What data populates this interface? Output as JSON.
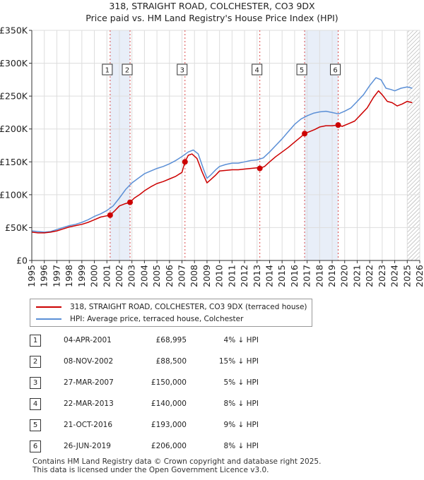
{
  "title_line1": "318, STRAIGHT ROAD, COLCHESTER, CO3 9DX",
  "title_line2": "Price paid vs. HM Land Registry's House Price Index (HPI)",
  "colors": {
    "property": "#cc0000",
    "hpi": "#5b8fd6",
    "shade": "#e8eef8",
    "vline": "#cc0000",
    "grid": "#dddddd",
    "hatch": "#999999"
  },
  "chart_data": {
    "type": "line",
    "title": "Price paid vs. HM Land Registry's House Price Index (HPI)",
    "xlabel": "",
    "ylabel": "",
    "xlim": [
      1995,
      2026
    ],
    "ylim": [
      0,
      350000
    ],
    "yticks": [
      0,
      50000,
      100000,
      150000,
      200000,
      250000,
      300000,
      350000
    ],
    "ytick_labels": [
      "£0",
      "£50K",
      "£100K",
      "£150K",
      "£200K",
      "£250K",
      "£300K",
      "£350K"
    ],
    "xticks": [
      1995,
      1996,
      1997,
      1998,
      1999,
      2000,
      2001,
      2002,
      2003,
      2004,
      2005,
      2006,
      2007,
      2008,
      2009,
      2010,
      2011,
      2012,
      2013,
      2014,
      2015,
      2016,
      2017,
      2018,
      2019,
      2020,
      2021,
      2022,
      2023,
      2024,
      2025,
      2026
    ],
    "xtick_labels": [
      "1995",
      "1996",
      "1997",
      "1998",
      "1999",
      "2000",
      "2001",
      "2002",
      "2003",
      "2004",
      "2005",
      "2006",
      "2007",
      "2008",
      "2009",
      "2010",
      "2011",
      "2012",
      "2013",
      "2014",
      "2015",
      "2016",
      "2017",
      "2018",
      "2019",
      "2020",
      "2021",
      "2022",
      "2023",
      "2024",
      "2025",
      "2026"
    ],
    "grid": true,
    "shaded_ranges": [
      [
        2001.26,
        2002.85
      ],
      [
        2016.8,
        2019.48
      ]
    ],
    "future_start": 2025.0,
    "series": [
      {
        "name": "318, STRAIGHT ROAD, COLCHESTER, CO3 9DX (terraced house)",
        "x": [
          1995.0,
          1995.5,
          1996.0,
          1996.5,
          1997.0,
          1997.5,
          1998.0,
          1998.5,
          1999.0,
          1999.5,
          2000.0,
          2000.5,
          2001.0,
          2001.26,
          2001.6,
          2002.0,
          2002.4,
          2002.85,
          2003.2,
          2003.6,
          2004.0,
          2004.5,
          2005.0,
          2005.5,
          2006.0,
          2006.5,
          2007.0,
          2007.24,
          2007.5,
          2007.8,
          2008.2,
          2008.6,
          2009.0,
          2009.3,
          2009.7,
          2010.0,
          2010.5,
          2011.0,
          2011.5,
          2012.0,
          2012.5,
          2013.0,
          2013.22,
          2013.6,
          2014.0,
          2014.5,
          2015.0,
          2015.5,
          2016.0,
          2016.5,
          2016.8,
          2017.2,
          2017.6,
          2018.0,
          2018.5,
          2019.0,
          2019.48,
          2019.8,
          2020.3,
          2020.8,
          2021.3,
          2021.8,
          2022.3,
          2022.7,
          2023.0,
          2023.4,
          2023.8,
          2024.2,
          2024.6,
          2025.0,
          2025.4
        ],
        "values": [
          43000,
          42000,
          42000,
          43000,
          45000,
          48000,
          51000,
          53000,
          55000,
          58000,
          62000,
          66000,
          68000,
          68995,
          75000,
          83000,
          86000,
          88500,
          95000,
          100000,
          106000,
          112000,
          117000,
          120000,
          124000,
          128000,
          134000,
          150000,
          160000,
          162000,
          155000,
          135000,
          118000,
          123000,
          130000,
          136000,
          137000,
          138000,
          138000,
          139000,
          140000,
          141000,
          140000,
          143000,
          150000,
          158000,
          165000,
          172000,
          180000,
          188000,
          193000,
          196000,
          199000,
          203000,
          205000,
          205000,
          206000,
          204000,
          208000,
          212000,
          222000,
          232000,
          248000,
          258000,
          252000,
          242000,
          240000,
          235000,
          238000,
          242000,
          240000
        ]
      },
      {
        "name": "HPI: Average price, terraced house, Colchester",
        "x": [
          1995.0,
          1995.5,
          1996.0,
          1996.5,
          1997.0,
          1997.5,
          1998.0,
          1998.5,
          1999.0,
          1999.5,
          2000.0,
          2000.5,
          2001.0,
          2001.5,
          2002.0,
          2002.5,
          2003.0,
          2003.5,
          2004.0,
          2004.5,
          2005.0,
          2005.5,
          2006.0,
          2006.5,
          2007.0,
          2007.5,
          2007.9,
          2008.3,
          2008.7,
          2009.0,
          2009.3,
          2009.7,
          2010.0,
          2010.5,
          2011.0,
          2011.5,
          2012.0,
          2012.5,
          2013.0,
          2013.5,
          2014.0,
          2014.5,
          2015.0,
          2015.5,
          2016.0,
          2016.5,
          2017.0,
          2017.5,
          2018.0,
          2018.5,
          2019.0,
          2019.5,
          2020.0,
          2020.5,
          2021.0,
          2021.5,
          2022.0,
          2022.5,
          2022.9,
          2023.3,
          2023.7,
          2024.0,
          2024.5,
          2025.0,
          2025.4
        ],
        "values": [
          45000,
          44000,
          43000,
          44000,
          47000,
          50000,
          53000,
          55000,
          58000,
          62000,
          67000,
          71000,
          76000,
          83000,
          95000,
          108000,
          118000,
          125000,
          132000,
          136000,
          140000,
          143000,
          147000,
          152000,
          158000,
          165000,
          168000,
          162000,
          140000,
          125000,
          130000,
          138000,
          143000,
          146000,
          148000,
          148000,
          150000,
          152000,
          153000,
          156000,
          165000,
          175000,
          185000,
          196000,
          207000,
          215000,
          220000,
          224000,
          226000,
          227000,
          225000,
          223000,
          227000,
          232000,
          242000,
          252000,
          266000,
          278000,
          275000,
          262000,
          260000,
          258000,
          262000,
          264000,
          262000
        ]
      }
    ],
    "sales": [
      {
        "num": "1",
        "x": 2001.26,
        "value": 68995
      },
      {
        "num": "2",
        "x": 2002.85,
        "value": 88500
      },
      {
        "num": "3",
        "x": 2007.24,
        "value": 150000
      },
      {
        "num": "4",
        "x": 2013.22,
        "value": 140000
      },
      {
        "num": "5",
        "x": 2016.8,
        "value": 193000
      },
      {
        "num": "6",
        "x": 2019.48,
        "value": 206000
      }
    ]
  },
  "legend": {
    "property_label": "318, STRAIGHT ROAD, COLCHESTER, CO3 9DX (terraced house)",
    "hpi_label": "HPI: Average price, terraced house, Colchester"
  },
  "transactions": [
    {
      "num": "1",
      "date": "04-APR-2001",
      "price": "£68,995",
      "hpi": "4% ↓ HPI"
    },
    {
      "num": "2",
      "date": "08-NOV-2002",
      "price": "£88,500",
      "hpi": "15% ↓ HPI"
    },
    {
      "num": "3",
      "date": "27-MAR-2007",
      "price": "£150,000",
      "hpi": "5% ↓ HPI"
    },
    {
      "num": "4",
      "date": "22-MAR-2013",
      "price": "£140,000",
      "hpi": "8% ↓ HPI"
    },
    {
      "num": "5",
      "date": "21-OCT-2016",
      "price": "£193,000",
      "hpi": "9% ↓ HPI"
    },
    {
      "num": "6",
      "date": "26-JUN-2019",
      "price": "£206,000",
      "hpi": "8% ↓ HPI"
    }
  ],
  "footer": {
    "line1": "Contains HM Land Registry data © Crown copyright and database right 2025.",
    "line2": "This data is licensed under the Open Government Licence v3.0."
  }
}
